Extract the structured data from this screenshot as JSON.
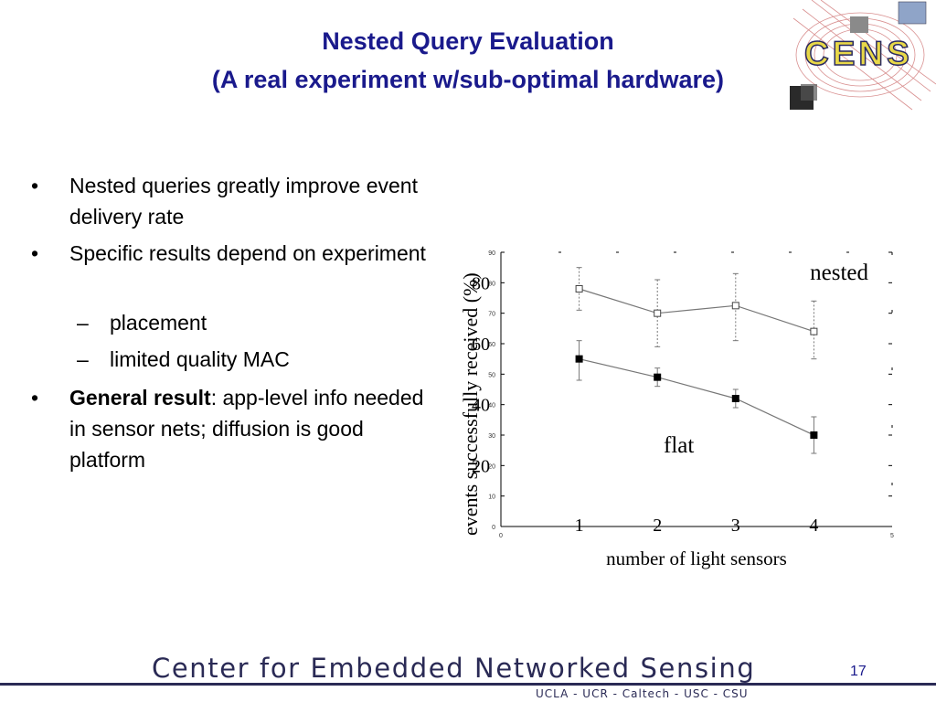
{
  "slide": {
    "title_line1": "Nested Query Evaluation",
    "title_line2": "(A real experiment w/sub-optimal hardware)",
    "page_number": "17"
  },
  "logo": {
    "text": "CENS"
  },
  "bullets": [
    {
      "level": 1,
      "marker": "•",
      "text": "Nested queries greatly improve event delivery rate"
    },
    {
      "level": 1,
      "marker": "•",
      "text": "Specific results depend on experiment"
    },
    {
      "level": 2,
      "marker": "–",
      "text": "placement"
    },
    {
      "level": 2,
      "marker": "–",
      "text": "limited quality MAC"
    },
    {
      "level": 1,
      "marker": "•",
      "bold": "General result",
      "text": ": app-level info needed in sensor nets; diffusion is good platform"
    }
  ],
  "footer": {
    "title": "Center for Embedded Networked Sensing",
    "subtitle": "UCLA - UCR - Caltech - USC - CSU"
  },
  "chart_data": {
    "type": "line",
    "xlabel": "number of light sensors",
    "ylabel": "events successfully received (%)",
    "xlim": [
      0,
      5
    ],
    "ylim": [
      0,
      90
    ],
    "x_ticks_small": [
      "0",
      "5"
    ],
    "y_ticks_small": [
      "0",
      "10",
      "20",
      "30",
      "40",
      "50",
      "60",
      "70",
      "80",
      "90"
    ],
    "x_ticks_large": [
      "1",
      "2",
      "3",
      "4"
    ],
    "y_ticks_large": [
      "20",
      "40",
      "60",
      "80"
    ],
    "series": [
      {
        "name": "nested",
        "marker": "open-square",
        "x": [
          1,
          2,
          3,
          4
        ],
        "values": [
          78,
          70,
          72.5,
          64
        ],
        "err_low": [
          71,
          59,
          61,
          55
        ],
        "err_high": [
          85,
          81,
          83,
          74
        ]
      },
      {
        "name": "flat",
        "marker": "filled-square",
        "x": [
          1,
          2,
          3,
          4
        ],
        "values": [
          55,
          49,
          42,
          30
        ],
        "err_low": [
          48,
          46,
          39,
          24
        ],
        "err_high": [
          61,
          52,
          45,
          36
        ]
      }
    ]
  }
}
